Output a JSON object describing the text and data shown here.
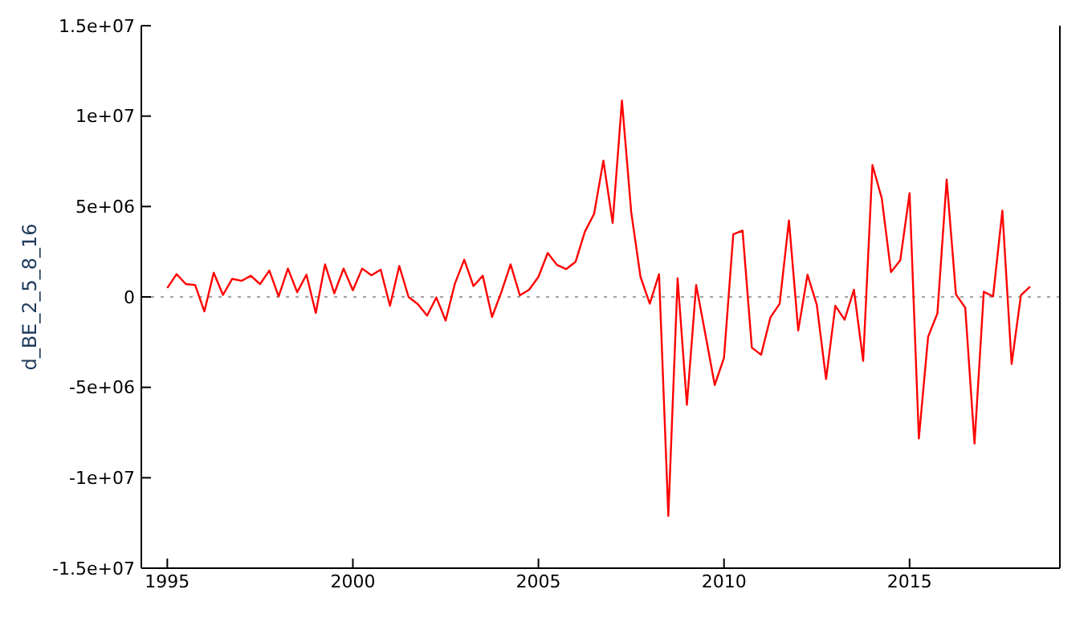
{
  "chart_data": {
    "type": "line",
    "ylabel": "d_BE_2_5_8_16",
    "x": [
      1995,
      1995.25,
      1995.5,
      1995.75,
      1996,
      1996.25,
      1996.5,
      1996.75,
      1997,
      1997.25,
      1997.5,
      1997.75,
      1998,
      1998.25,
      1998.5,
      1998.75,
      1999,
      1999.25,
      1999.5,
      1999.75,
      2000,
      2000.25,
      2000.5,
      2000.75,
      2001,
      2001.25,
      2001.5,
      2001.75,
      2002,
      2002.25,
      2002.5,
      2002.75,
      2003,
      2003.25,
      2003.5,
      2003.75,
      2004,
      2004.25,
      2004.5,
      2004.75,
      2005,
      2005.25,
      2005.5,
      2005.75,
      2006,
      2006.25,
      2006.5,
      2006.75,
      2007,
      2007.25,
      2007.5,
      2007.75,
      2008,
      2008.25,
      2008.5,
      2008.75,
      2009,
      2009.25,
      2009.5,
      2009.75,
      2010,
      2010.25,
      2010.5,
      2010.75,
      2011,
      2011.25,
      2011.5,
      2011.75,
      2012,
      2012.25,
      2012.5,
      2012.75,
      2013,
      2013.25,
      2013.5,
      2013.75,
      2014,
      2014.25,
      2014.5,
      2014.75,
      2015,
      2015.25,
      2015.5,
      2015.75,
      2016,
      2016.25,
      2016.5,
      2016.75,
      2017,
      2017.25,
      2017.5,
      2017.75,
      2018,
      2018.25
    ],
    "series": [
      {
        "color": "#ff0000",
        "values": [
          490000,
          1260000,
          710000,
          660000,
          -800000,
          1340000,
          110000,
          1000000,
          890000,
          1170000,
          710000,
          1460000,
          30000,
          1570000,
          260000,
          1230000,
          -890000,
          1800000,
          200000,
          1570000,
          370000,
          1570000,
          1200000,
          1510000,
          -490000,
          1710000,
          0,
          -400000,
          -1030000,
          -30000,
          -1310000,
          740000,
          2060000,
          600000,
          1170000,
          -1110000,
          260000,
          1800000,
          90000,
          400000,
          1110000,
          2430000,
          1770000,
          1540000,
          1940000,
          3600000,
          4600000,
          7540000,
          4090000,
          10860000,
          4690000,
          1110000,
          -370000,
          1260000,
          -12110000,
          1030000,
          -5970000,
          660000,
          -2090000,
          -4870000,
          -3370000,
          3470000,
          3670000,
          -2800000,
          -3200000,
          -1140000,
          -370000,
          4230000,
          -1860000,
          1230000,
          -430000,
          -4540000,
          -490000,
          -1260000,
          400000,
          -3540000,
          7290000,
          5460000,
          1370000,
          2030000,
          5740000,
          -7830000,
          -2200000,
          -910000,
          6490000,
          140000,
          -600000,
          -8110000,
          290000,
          30000,
          4770000,
          -3710000,
          90000,
          570000
        ]
      }
    ],
    "xlim": [
      1994.3,
      2019.05
    ],
    "xticks": [
      1995,
      2000,
      2005,
      2010,
      2015
    ],
    "ylim": [
      -15000000,
      15000000
    ],
    "yticks": [
      {
        "value": -15000000,
        "label": "-1.5e+07"
      },
      {
        "value": -10000000,
        "label": "-1e+07"
      },
      {
        "value": -5000000,
        "label": "-5e+06"
      },
      {
        "value": 0,
        "label": "0"
      },
      {
        "value": 5000000,
        "label": "5e+06"
      },
      {
        "value": 10000000,
        "label": "1e+07"
      },
      {
        "value": 15000000,
        "label": "1.5e+07"
      }
    ],
    "ref_lines": [
      {
        "axis": "y",
        "value": 0,
        "color": "#a0a0a0",
        "line_style": "dotted"
      }
    ],
    "line_style": "solid"
  }
}
